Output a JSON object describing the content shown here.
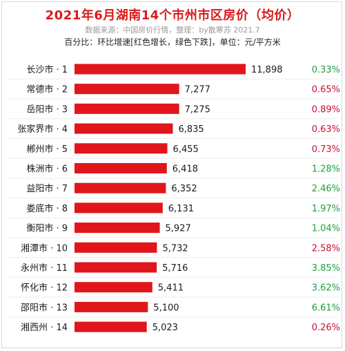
{
  "header": {
    "title": "2021年6月湖南14个市州市区房价（均价）",
    "source": "数据来源：中国房价行情，整理：by散寒苏  2021.7",
    "note": "百分比：环比增速[红色增长，绿色下跌]，单位：元/平方米"
  },
  "colors": {
    "bar": "#e0161b",
    "increase": "#c8102e",
    "decrease": "#1f9e3d",
    "title": "#d91a1a"
  },
  "chart_data": {
    "type": "bar",
    "orientation": "horizontal",
    "categories": [
      "长沙市 · 1",
      "常德市 · 2",
      "岳阳市 · 3",
      "张家界市 · 4",
      "郴州市 · 5",
      "株洲市 · 6",
      "益阳市 · 7",
      "娄底市 · 8",
      "衡阳市 · 9",
      "湘潭市 · 10",
      "永州市 · 11",
      "怀化市 · 12",
      "邵阳市 · 13",
      "湘西州 · 14"
    ],
    "values": [
      11898,
      7277,
      7275,
      6835,
      6455,
      6418,
      6352,
      6131,
      5927,
      5732,
      5716,
      5411,
      5100,
      5023
    ],
    "value_labels": [
      "11,898",
      "7,277",
      "7,275",
      "6,835",
      "6,455",
      "6,418",
      "6,352",
      "6,131",
      "5,927",
      "5,732",
      "5,716",
      "5,411",
      "5,100",
      "5,023"
    ],
    "mom_change_labels": [
      "0.33%",
      "0.65%",
      "0.89%",
      "0.63%",
      "0.73%",
      "1.28%",
      "2.46%",
      "1.97%",
      "1.04%",
      "2.58%",
      "3.85%",
      "3.62%",
      "6.61%",
      "0.26%"
    ],
    "mom_direction": [
      "down",
      "up",
      "up",
      "up",
      "up",
      "down",
      "down",
      "down",
      "down",
      "up",
      "down",
      "down",
      "down",
      "up"
    ],
    "title": "2021年6月湖南14个市州市区房价（均价）",
    "xlabel": "",
    "ylabel": "",
    "legend": "none",
    "grid": false
  }
}
